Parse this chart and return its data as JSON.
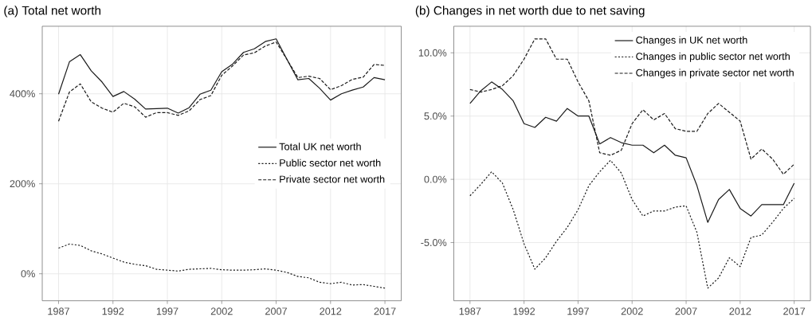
{
  "chart_data": [
    {
      "type": "line",
      "title": "(a) Total net worth",
      "x": [
        1987,
        1988,
        1989,
        1990,
        1991,
        1992,
        1993,
        1994,
        1995,
        1996,
        1997,
        1998,
        1999,
        2000,
        2001,
        2002,
        2003,
        2004,
        2005,
        2006,
        2007,
        2008,
        2009,
        2010,
        2011,
        2012,
        2013,
        2014,
        2015,
        2016,
        2017
      ],
      "series": [
        {
          "name": "Total UK net worth",
          "color": "#1a1a1a",
          "line_style": "solid",
          "values": [
            399,
            471,
            487,
            451,
            426,
            394,
            405,
            388,
            366,
            367,
            368,
            357,
            369,
            399,
            408,
            449,
            466,
            492,
            500,
            516,
            522,
            476,
            431,
            434,
            412,
            386,
            400,
            408,
            415,
            436,
            431
          ]
        },
        {
          "name": "Public sector net worth",
          "color": "#1a1a1a",
          "line_style": "dotted",
          "values": [
            57,
            66,
            63,
            51,
            44,
            35,
            26,
            21,
            18,
            10,
            8,
            6,
            10,
            11,
            12,
            9,
            8,
            8,
            9,
            11,
            8,
            3,
            -6,
            -9,
            -19,
            -22,
            -19,
            -25,
            -24,
            -28,
            -32
          ]
        },
        {
          "name": "Private sector net worth",
          "color": "#1a1a1a",
          "line_style": "dashed",
          "values": [
            339,
            404,
            422,
            382,
            368,
            359,
            379,
            371,
            348,
            358,
            358,
            352,
            362,
            387,
            396,
            441,
            462,
            486,
            491,
            506,
            515,
            476,
            436,
            439,
            434,
            409,
            418,
            432,
            437,
            465,
            463
          ]
        }
      ],
      "xlim": [
        1985.5,
        2018.5
      ],
      "xticks": [
        1987,
        1992,
        1997,
        2002,
        2007,
        2012,
        2017
      ],
      "ylim": [
        -60,
        550
      ],
      "yticks": [
        {
          "value": 0,
          "label": "0%"
        },
        {
          "value": 200,
          "label": "200%"
        },
        {
          "value": 400,
          "label": "400%"
        }
      ],
      "grid": true,
      "legend": "right"
    },
    {
      "type": "line",
      "title": "(b) Changes in net worth due to net saving",
      "x": [
        1987,
        1988,
        1989,
        1990,
        1991,
        1992,
        1993,
        1994,
        1995,
        1996,
        1997,
        1998,
        1999,
        2000,
        2001,
        2002,
        2003,
        2004,
        2005,
        2006,
        2007,
        2008,
        2009,
        2010,
        2011,
        2012,
        2013,
        2014,
        2015,
        2016,
        2017
      ],
      "series": [
        {
          "name": "Changes in UK net worth",
          "color": "#1a1a1a",
          "line_style": "solid",
          "values": [
            6.0,
            7.0,
            7.7,
            7.1,
            6.2,
            4.4,
            4.1,
            4.9,
            4.6,
            5.6,
            5.0,
            5.0,
            2.8,
            3.3,
            2.9,
            2.7,
            2.7,
            2.1,
            2.7,
            1.9,
            1.7,
            -0.5,
            -3.4,
            -1.6,
            -0.8,
            -2.3,
            -2.9,
            -2.0,
            -2.0,
            -2.0,
            -0.3
          ]
        },
        {
          "name": "Changes in public sector net worth",
          "color": "#1a1a1a",
          "line_style": "dotted",
          "values": [
            -1.3,
            -0.4,
            0.6,
            -0.3,
            -2.4,
            -5.1,
            -7.1,
            -6.2,
            -4.9,
            -3.8,
            -2.4,
            -0.5,
            0.6,
            1.5,
            0.5,
            -1.6,
            -2.9,
            -2.5,
            -2.5,
            -2.2,
            -2.1,
            -4.2,
            -8.6,
            -7.8,
            -6.2,
            -6.9,
            -4.6,
            -4.4,
            -3.4,
            -2.3,
            -1.5
          ]
        },
        {
          "name": "Changes in private sector net worth",
          "color": "#1a1a1a",
          "line_style": "dashed",
          "values": [
            7.1,
            6.9,
            7.1,
            7.4,
            8.2,
            9.5,
            11.1,
            11.1,
            9.5,
            9.5,
            7.7,
            6.2,
            2.1,
            1.9,
            2.3,
            4.4,
            5.5,
            4.7,
            5.2,
            4.0,
            3.8,
            3.8,
            5.2,
            6.0,
            5.3,
            4.6,
            1.6,
            2.4,
            1.6,
            0.4,
            1.2
          ]
        }
      ],
      "xlim": [
        1985.5,
        2018.5
      ],
      "xticks": [
        1987,
        1992,
        1997,
        2002,
        2007,
        2012,
        2017
      ],
      "ylim": [
        -9.6,
        12.1
      ],
      "yticks": [
        {
          "value": -5,
          "label": "-5.0%"
        },
        {
          "value": 0,
          "label": "0.0%"
        },
        {
          "value": 5,
          "label": "5.0%"
        },
        {
          "value": 10,
          "label": "10.0%"
        }
      ],
      "grid": true,
      "legend": "top right"
    }
  ]
}
